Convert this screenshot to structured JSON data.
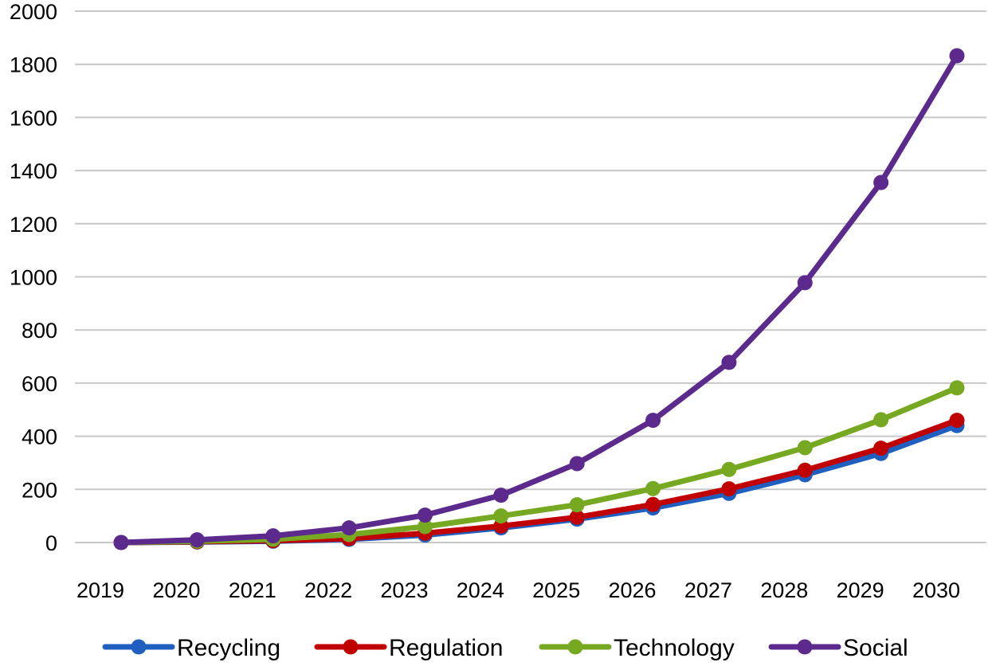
{
  "chart_data": {
    "type": "line",
    "title": "",
    "xlabel": "",
    "ylabel": "",
    "categories": [
      "2019",
      "2020",
      "2021",
      "2022",
      "2023",
      "2024",
      "2025",
      "2026",
      "2027",
      "2028",
      "2029",
      "2030"
    ],
    "ylim": [
      0,
      2000
    ],
    "yticks": [
      0,
      200,
      400,
      600,
      800,
      1000,
      1200,
      1400,
      1600,
      1800,
      2000
    ],
    "grid": true,
    "legend_position": "bottom",
    "series": [
      {
        "name": "Recycling",
        "color": "#1f5fbf",
        "values": [
          0,
          2,
          5,
          12,
          28,
          55,
          88,
          130,
          185,
          255,
          335,
          440
        ]
      },
      {
        "name": "Regulation",
        "color": "#c00000",
        "values": [
          0,
          3,
          7,
          15,
          35,
          62,
          95,
          143,
          202,
          272,
          355,
          460
        ]
      },
      {
        "name": "Technology",
        "color": "#77a822",
        "values": [
          0,
          5,
          12,
          30,
          60,
          100,
          142,
          203,
          275,
          357,
          462,
          582
        ]
      },
      {
        "name": "Social",
        "color": "#5b2a8c",
        "values": [
          0,
          10,
          25,
          55,
          103,
          178,
          297,
          460,
          678,
          978,
          1355,
          1832
        ]
      }
    ]
  }
}
